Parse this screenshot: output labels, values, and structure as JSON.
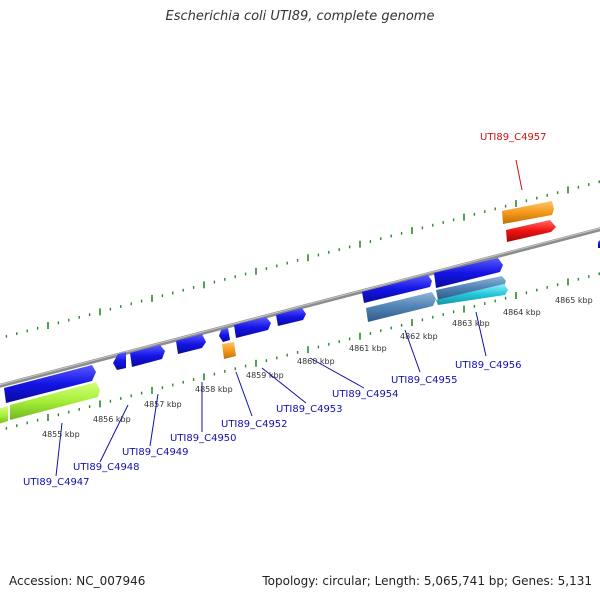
{
  "title": "Escherichia coli UTI89, complete genome",
  "footer": {
    "accession": "Accession: NC_007946",
    "summary": "Topology: circular; Length: 5,065,741 bp; Genes: 5,131"
  },
  "colors": {
    "backbone": "#8c8c8c",
    "tick": "#2a8a2a",
    "gene_blue": "#1414e6",
    "gene_green": "#a6ee3a",
    "gene_steel": "#4f82b4",
    "gene_cyan": "#21c7d9",
    "gene_orange": "#f49a1b",
    "gene_red": "#ee1111",
    "label_blue": "#1010b0",
    "label_red": "#cc1111"
  },
  "scale_labels": [
    "4855 kbp",
    "4856 kbp",
    "4857 kbp",
    "4858 kbp",
    "4859 kbp",
    "4860 kbp",
    "4861 kbp",
    "4862 kbp",
    "4863 kbp",
    "4864 kbp",
    "4865 kbp"
  ],
  "gene_labels": [
    {
      "text": "UTI89_C4947",
      "color": "blue"
    },
    {
      "text": "UTI89_C4948",
      "color": "blue"
    },
    {
      "text": "UTI89_C4949",
      "color": "blue"
    },
    {
      "text": "UTI89_C4950",
      "color": "blue"
    },
    {
      "text": "UTI89_C4952",
      "color": "blue"
    },
    {
      "text": "UTI89_C4953",
      "color": "blue"
    },
    {
      "text": "UTI89_C4954",
      "color": "blue"
    },
    {
      "text": "UTI89_C4955",
      "color": "blue"
    },
    {
      "text": "UTI89_C4956",
      "color": "blue"
    },
    {
      "text": "UTI89_C4957",
      "color": "red"
    }
  ]
}
